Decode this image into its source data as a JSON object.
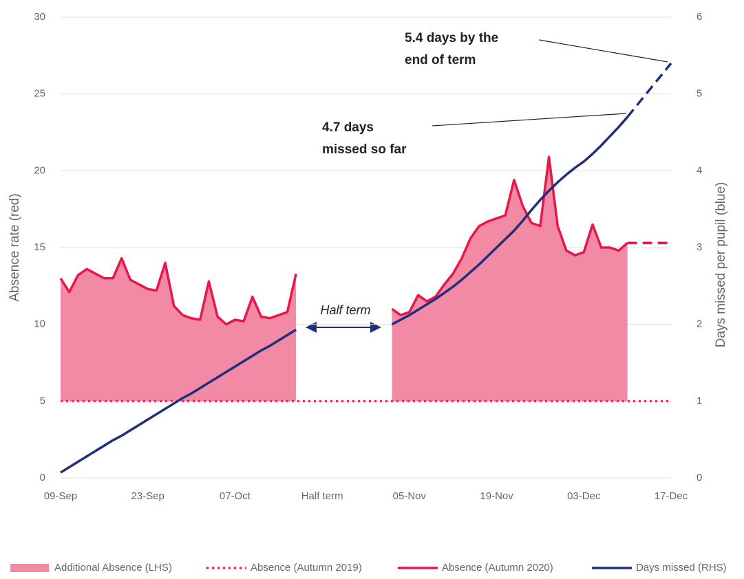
{
  "chart_data": {
    "type": "line",
    "categories": [
      "09-Sep",
      null,
      null,
      null,
      null,
      null,
      null,
      null,
      null,
      null,
      "23-Sep",
      null,
      null,
      null,
      null,
      null,
      null,
      null,
      null,
      null,
      "07-Oct",
      null,
      null,
      null,
      null,
      null,
      null,
      null,
      null,
      null,
      "Half term",
      null,
      null,
      null,
      null,
      null,
      null,
      null,
      null,
      null,
      "05-Nov",
      null,
      null,
      null,
      null,
      null,
      null,
      null,
      null,
      null,
      "19-Nov",
      null,
      null,
      null,
      null,
      null,
      null,
      null,
      null,
      null,
      "03-Dec",
      null,
      null,
      null,
      null,
      null,
      null,
      null,
      null,
      null,
      "17-Dec"
    ],
    "ylabel": "Absence rate (red)",
    "y2label": "Days missed per pupil (blue)",
    "ylim": [
      0,
      30
    ],
    "yticks": [
      0,
      5,
      10,
      15,
      20,
      25,
      30
    ],
    "y2lim": [
      0,
      6
    ],
    "y2ticks": [
      0,
      1,
      2,
      3,
      4,
      5,
      6
    ],
    "grid": true,
    "legend": "bottom",
    "series": [
      {
        "name": "Additional Absence (LHS)",
        "color": "#f28aa6",
        "style": "area",
        "stacked_on": 1,
        "values": [
          8.0,
          7.1,
          8.2,
          8.6,
          8.3,
          8.0,
          8.0,
          9.3,
          7.9,
          7.6,
          7.3,
          7.2,
          9.0,
          6.2,
          5.6,
          5.4,
          5.3,
          7.8,
          5.5,
          5.0,
          5.3,
          5.2,
          6.8,
          5.5,
          5.4,
          5.6,
          5.8,
          8.3,
          null,
          null,
          null,
          null,
          null,
          null,
          null,
          null,
          null,
          null,
          6.0,
          5.6,
          5.8,
          6.9,
          6.5,
          6.8,
          7.6,
          8.3,
          9.3,
          10.6,
          11.4,
          11.7,
          11.9,
          12.1,
          14.4,
          12.7,
          11.6,
          11.4,
          15.9,
          11.4,
          9.8,
          9.5,
          9.7,
          11.5,
          10.0,
          10.0,
          9.8,
          10.3,
          null,
          null,
          null,
          null,
          null
        ]
      },
      {
        "name": "Absence (Autumn 2019)",
        "color": "#e0245e",
        "style": "dotted",
        "values": [
          5,
          5,
          5,
          5,
          5,
          5,
          5,
          5,
          5,
          5,
          5,
          5,
          5,
          5,
          5,
          5,
          5,
          5,
          5,
          5,
          5,
          5,
          5,
          5,
          5,
          5,
          5,
          5,
          5,
          5,
          5,
          5,
          5,
          5,
          5,
          5,
          5,
          5,
          5,
          5,
          5,
          5,
          5,
          5,
          5,
          5,
          5,
          5,
          5,
          5,
          5,
          5,
          5,
          5,
          5,
          5,
          5,
          5,
          5,
          5,
          5,
          5,
          5,
          5,
          5,
          5,
          5,
          5,
          5,
          5,
          5
        ]
      },
      {
        "name": "Absence (Autumn 2020)",
        "color": "#e8174a",
        "style": "solid",
        "values": [
          13.0,
          12.1,
          13.2,
          13.6,
          13.3,
          13.0,
          13.0,
          14.3,
          12.9,
          12.6,
          12.3,
          12.2,
          14.0,
          11.2,
          10.6,
          10.4,
          10.3,
          12.8,
          10.5,
          10.0,
          10.3,
          10.2,
          11.8,
          10.5,
          10.4,
          10.6,
          10.8,
          13.3,
          null,
          null,
          null,
          null,
          null,
          null,
          null,
          null,
          null,
          null,
          11.0,
          10.6,
          10.8,
          11.9,
          11.5,
          11.8,
          12.6,
          13.3,
          14.3,
          15.6,
          16.4,
          16.7,
          16.9,
          17.1,
          19.4,
          17.7,
          16.6,
          16.4,
          20.9,
          16.4,
          14.8,
          14.5,
          14.7,
          16.5,
          15.0,
          15.0,
          14.8,
          15.3,
          null,
          null,
          null,
          null,
          null
        ],
        "projection": [
          null,
          null,
          null,
          null,
          null,
          null,
          null,
          null,
          null,
          null,
          null,
          null,
          null,
          null,
          null,
          null,
          null,
          null,
          null,
          null,
          null,
          null,
          null,
          null,
          null,
          null,
          null,
          null,
          null,
          null,
          null,
          null,
          null,
          null,
          null,
          null,
          null,
          null,
          null,
          null,
          null,
          null,
          null,
          null,
          null,
          null,
          null,
          null,
          null,
          null,
          null,
          null,
          null,
          null,
          null,
          null,
          null,
          null,
          null,
          null,
          null,
          null,
          null,
          null,
          null,
          15.3,
          15.3,
          15.3,
          15.3,
          15.3,
          15.3
        ]
      },
      {
        "name": "Days missed (RHS)",
        "color": "#1f2f7a",
        "style": "solid",
        "axis": "y2",
        "values": [
          0.07,
          0.14,
          0.21,
          0.28,
          0.35,
          0.42,
          0.49,
          0.55,
          0.62,
          0.69,
          0.76,
          0.83,
          0.9,
          0.97,
          1.04,
          1.1,
          1.17,
          1.24,
          1.31,
          1.38,
          1.45,
          1.52,
          1.59,
          1.66,
          1.72,
          1.79,
          1.86,
          1.93,
          null,
          null,
          null,
          null,
          null,
          null,
          null,
          null,
          null,
          null,
          2.0,
          2.06,
          2.12,
          2.19,
          2.26,
          2.33,
          2.41,
          2.49,
          2.58,
          2.68,
          2.78,
          2.89,
          3.0,
          3.11,
          3.22,
          3.35,
          3.49,
          3.62,
          3.74,
          3.85,
          3.95,
          4.04,
          4.12,
          4.22,
          4.33,
          4.45,
          4.57,
          4.7,
          null,
          null,
          null,
          null,
          null
        ],
        "projection": [
          null,
          null,
          null,
          null,
          null,
          null,
          null,
          null,
          null,
          null,
          null,
          null,
          null,
          null,
          null,
          null,
          null,
          null,
          null,
          null,
          null,
          null,
          null,
          null,
          null,
          null,
          null,
          null,
          null,
          null,
          null,
          null,
          null,
          null,
          null,
          null,
          null,
          null,
          null,
          null,
          null,
          null,
          null,
          null,
          null,
          null,
          null,
          null,
          null,
          null,
          null,
          null,
          null,
          null,
          null,
          null,
          null,
          null,
          null,
          null,
          null,
          null,
          null,
          null,
          null,
          4.7,
          4.84,
          4.98,
          5.12,
          5.26,
          5.4
        ]
      }
    ],
    "annotations": [
      {
        "lines": [
          "5.4 days by the",
          "end of term"
        ],
        "style": "bold"
      },
      {
        "lines": [
          "4.7 days",
          "missed so far"
        ],
        "style": "bold"
      },
      {
        "lines": [
          "Half term"
        ],
        "style": "italic"
      }
    ]
  }
}
